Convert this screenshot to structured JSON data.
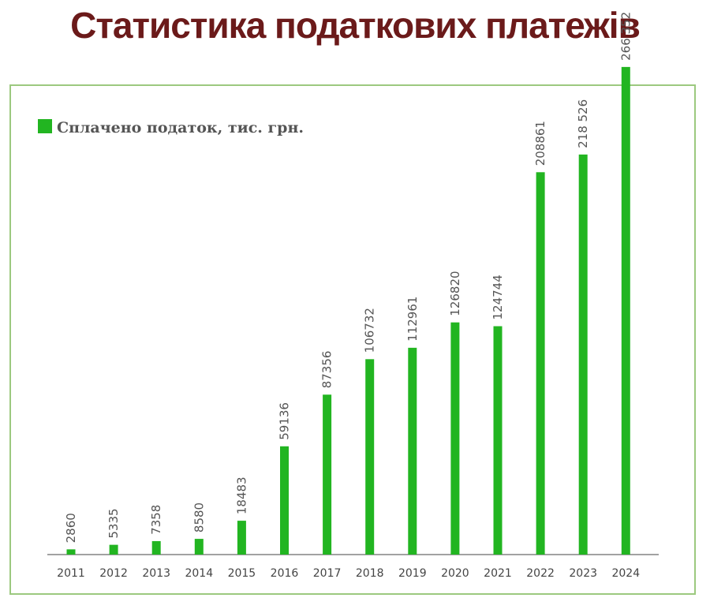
{
  "page": {
    "title": "Статистика податкових платежів"
  },
  "colors": {
    "title": "#6b1a1a",
    "bar": "#22b521",
    "frame": "#9cc97f",
    "axis": "#444444",
    "label": "#555555"
  },
  "chart_data": {
    "type": "bar",
    "title": "",
    "xlabel": "",
    "ylabel": "",
    "ylim": [
      0,
      290000
    ],
    "grid": false,
    "legend_position": "top-left",
    "categories": [
      "2011",
      "2012",
      "2013",
      "2014",
      "2015",
      "2016",
      "2017",
      "2018",
      "2019",
      "2020",
      "2021",
      "2022",
      "2023",
      "2024"
    ],
    "series": [
      {
        "name": "Сплачено податок, тис. грн.",
        "values": [
          2860,
          5335,
          7358,
          8580,
          18483,
          59136,
          87356,
          106732,
          112961,
          126820,
          124744,
          208861,
          218526,
          266352
        ],
        "labels": [
          "2860",
          "5335",
          "7358",
          "8580",
          "18483",
          "59136",
          "87356",
          "106732",
          "112961",
          "126820",
          "124744",
          "208861",
          "218 526",
          "266 352"
        ]
      }
    ]
  }
}
